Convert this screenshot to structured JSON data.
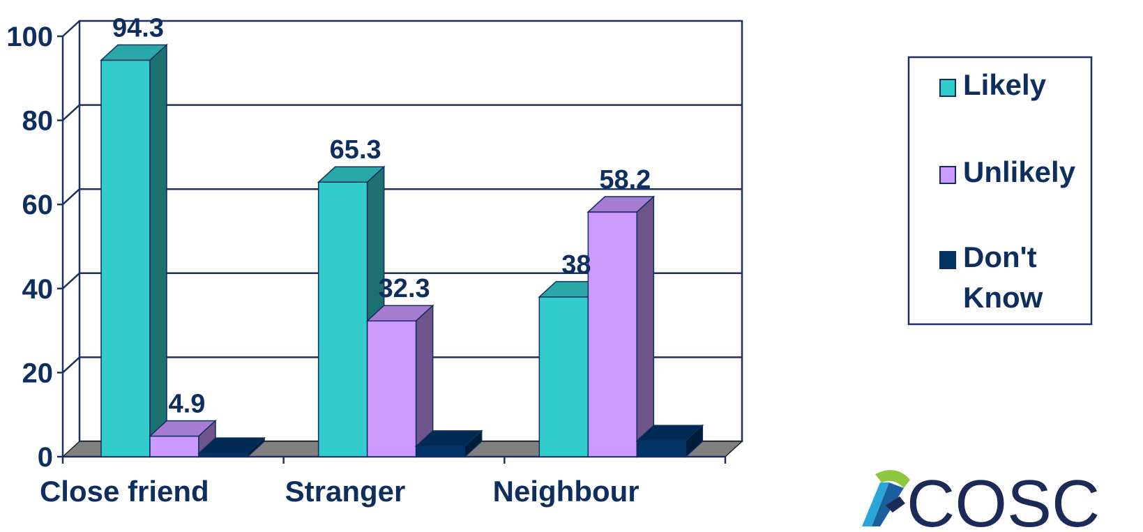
{
  "chart_data": {
    "type": "bar",
    "categories": [
      "Close friend",
      "Stranger",
      "Neighbour"
    ],
    "series": [
      {
        "name": "Likely",
        "values": [
          94.3,
          65.3,
          38
        ],
        "labels": [
          "94.3",
          "65.3",
          "38"
        ]
      },
      {
        "name": "Unlikely",
        "values": [
          4.9,
          32.3,
          58.2
        ],
        "labels": [
          "4.9",
          "32.3",
          "58.2"
        ]
      },
      {
        "name": "Don't Know",
        "values": [
          0.8,
          2.5,
          3.8
        ],
        "labels": [
          "",
          "",
          ""
        ]
      }
    ],
    "ylim": [
      0,
      100
    ],
    "yticks": [
      0,
      20,
      40,
      60,
      80,
      100
    ],
    "grid": true,
    "legend_position": "right",
    "three_d": true,
    "colors": {
      "Likely": "#33cccc",
      "Unlikely": "#cc99ff",
      "Don't Know": "#003366",
      "floor": "#808080",
      "grid": "#1f2f5f",
      "text": "#0d2e5f"
    }
  },
  "logo": {
    "text": "COSC"
  }
}
